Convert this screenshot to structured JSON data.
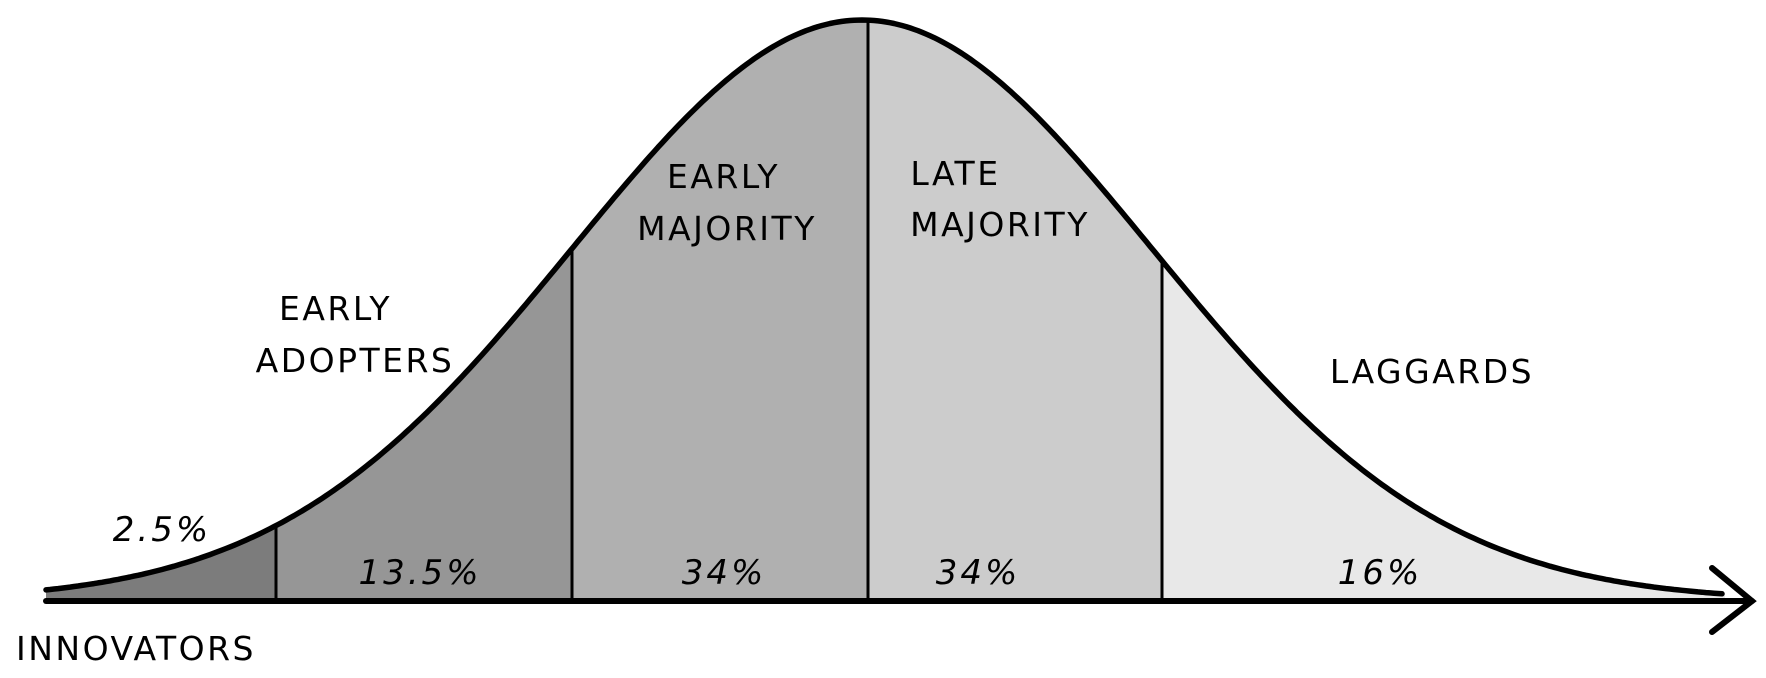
{
  "diagram": {
    "segments": [
      {
        "key": "innovators",
        "name_lines": [
          "INNOVATORS"
        ],
        "percent": "2.5%",
        "color": "#7c7c7c"
      },
      {
        "key": "early_adopters",
        "name_lines": [
          "EARLY",
          "ADOPTERS"
        ],
        "percent": "13.5%",
        "color": "#969696"
      },
      {
        "key": "early_majority",
        "name_lines": [
          "EARLY",
          "MAJORITY"
        ],
        "percent": "34%",
        "color": "#b0b0b0"
      },
      {
        "key": "late_majority",
        "name_lines": [
          "LATE",
          "MAJORITY"
        ],
        "percent": "34%",
        "color": "#cccccc"
      },
      {
        "key": "laggards",
        "name_lines": [
          "LAGGARDS"
        ],
        "percent": "16%",
        "color": "#e8e8e8"
      }
    ],
    "outline_color": "#000000"
  }
}
